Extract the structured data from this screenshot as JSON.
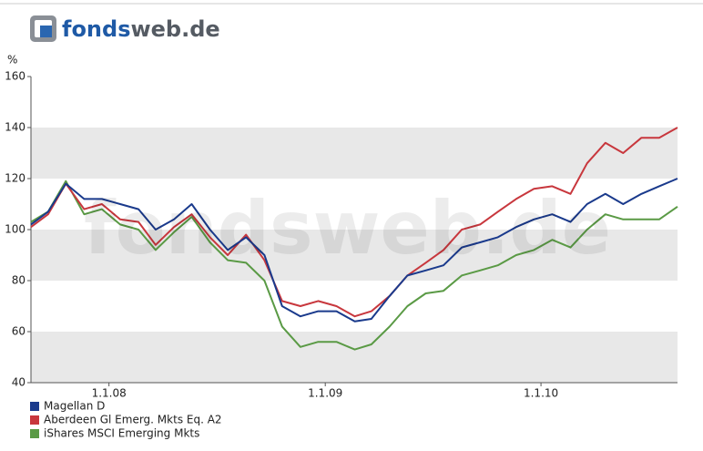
{
  "logo": {
    "part1": "fonds",
    "part2": "web.de"
  },
  "chart_data": {
    "type": "line",
    "y_label": "%",
    "x": [
      "2007-08-22",
      "2007-09-20",
      "2007-10-20",
      "2007-11-20",
      "2007-12-20",
      "2008-01-20",
      "2008-02-20",
      "2008-03-20",
      "2008-04-20",
      "2008-05-20",
      "2008-06-20",
      "2008-07-20",
      "2008-08-20",
      "2008-09-20",
      "2008-10-20",
      "2008-11-20",
      "2008-12-20",
      "2009-01-20",
      "2009-02-20",
      "2009-03-20",
      "2009-04-20",
      "2009-05-20",
      "2009-06-20",
      "2009-07-20",
      "2009-08-20",
      "2009-09-20",
      "2009-10-20",
      "2009-11-20",
      "2009-12-20",
      "2010-01-20",
      "2010-02-20",
      "2010-03-20",
      "2010-04-20",
      "2010-05-20",
      "2010-06-20",
      "2010-07-20",
      "2010-08-20"
    ],
    "xlim": [
      "2007-08-22",
      "2010-08-20"
    ],
    "xticks": [
      {
        "value": "2008-01-01",
        "label": "1.1.08"
      },
      {
        "value": "2009-01-01",
        "label": "1.1.09"
      },
      {
        "value": "2010-01-01",
        "label": "1.1.10"
      }
    ],
    "ylim": [
      40,
      160
    ],
    "yticks": [
      40,
      60,
      80,
      100,
      120,
      140,
      160
    ],
    "grid": "bands",
    "legend": "bottom-left",
    "series": [
      {
        "name": "Magellan D",
        "color": "#1a3a8c",
        "values": [
          102,
          107,
          118,
          112,
          112,
          110,
          108,
          100,
          104,
          110,
          100,
          92,
          97,
          90,
          70,
          66,
          68,
          68,
          64,
          65,
          74,
          82,
          84,
          86,
          93,
          95,
          97,
          101,
          104,
          106,
          103,
          110,
          114,
          110,
          114,
          117,
          120
        ]
      },
      {
        "name": "Aberdeen Gl Emerg. Mkts Eq. A2",
        "color": "#c8373d",
        "values": [
          101,
          106,
          118,
          108,
          110,
          104,
          103,
          94,
          101,
          106,
          97,
          90,
          98,
          88,
          72,
          70,
          72,
          70,
          66,
          68,
          74,
          82,
          87,
          92,
          100,
          102,
          107,
          112,
          116,
          117,
          114,
          126,
          134,
          130,
          136,
          136,
          140
        ]
      },
      {
        "name": "iShares MSCI Emerging Mkts",
        "color": "#5a9a45",
        "values": [
          103,
          107,
          119,
          106,
          108,
          102,
          100,
          92,
          99,
          105,
          95,
          88,
          87,
          80,
          62,
          54,
          56,
          56,
          53,
          55,
          62,
          70,
          75,
          76,
          82,
          84,
          86,
          90,
          92,
          96,
          93,
          100,
          106,
          104,
          104,
          104,
          109
        ]
      }
    ]
  }
}
